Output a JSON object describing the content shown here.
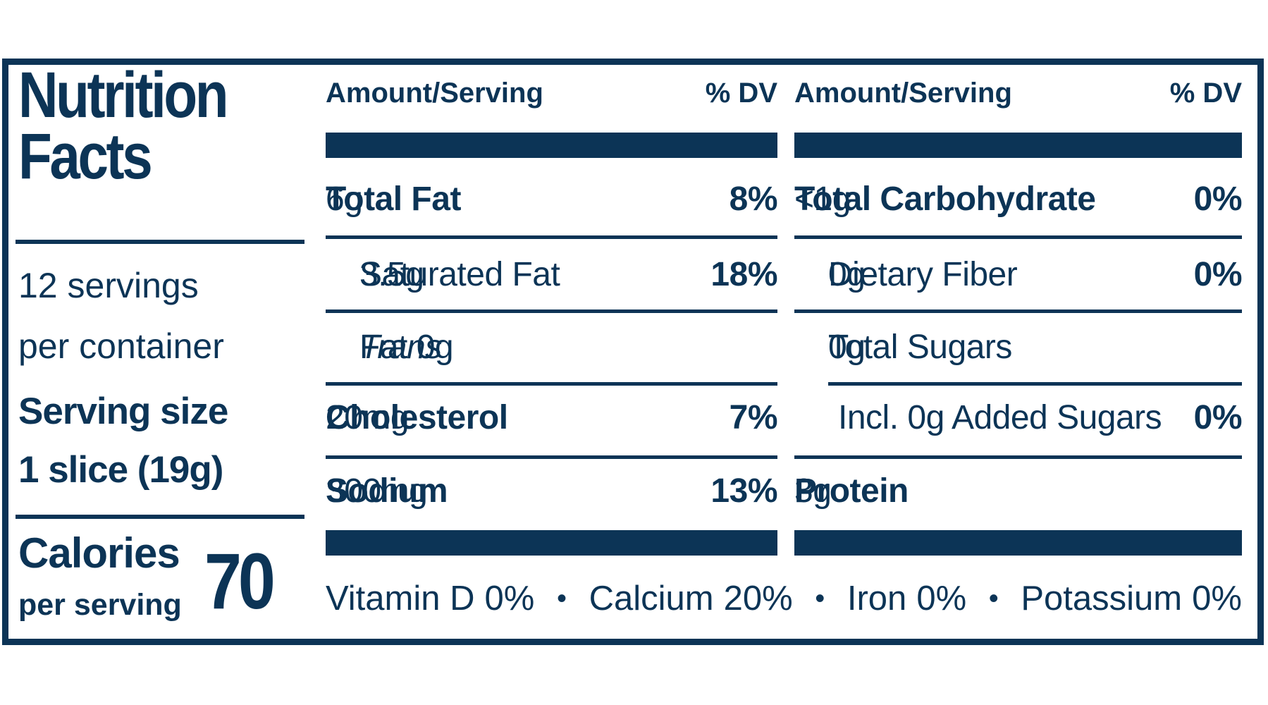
{
  "label": {
    "title": "Nutrition Facts",
    "servings_line1": "12 servings",
    "servings_line2": "per container",
    "serving_size_label": "Serving size",
    "serving_size_value": "1 slice (19g)",
    "calories_label": "Calories",
    "calories_sublabel": "per serving",
    "calories_value": "70",
    "bullet": "•",
    "colors": {
      "navy": "#0C3456",
      "background": "#FFFFFF"
    },
    "columns": [
      {
        "header_amount": "Amount/Serving",
        "header_dv": "% DV",
        "rows": [
          {
            "name": "Total Fat",
            "value": " 6g",
            "dv": "8%"
          },
          {
            "name": "Saturated Fat",
            "value": " 3.5g",
            "dv": "18%"
          },
          {
            "name": "Trans",
            "value": " Fat 0g",
            "dv": ""
          },
          {
            "name": "Cholesterol",
            "value": " 20mg",
            "dv": "7%"
          },
          {
            "name": "Sodium",
            "value": " 300mg",
            "dv": "13%"
          }
        ]
      },
      {
        "header_amount": "Amount/Serving",
        "header_dv": "% DV",
        "rows": [
          {
            "name": "Total Carbohydrate",
            "value": " <1g",
            "dv": "0%"
          },
          {
            "name": "Dietary Fiber",
            "value": " 0g",
            "dv": "0%"
          },
          {
            "name": "Total Sugars",
            "value": " 0g",
            "dv": ""
          },
          {
            "name": "Incl. 0g Added Sugars",
            "value": "",
            "dv": "0%"
          },
          {
            "name": "Protein",
            "value": " 3g",
            "dv": ""
          }
        ]
      }
    ],
    "micronutrients": [
      {
        "name": "Vitamin D",
        "value": "0%"
      },
      {
        "name": "Calcium",
        "value": "20%"
      },
      {
        "name": "Iron",
        "value": "0%"
      },
      {
        "name": "Potassium",
        "value": "0%"
      }
    ]
  }
}
